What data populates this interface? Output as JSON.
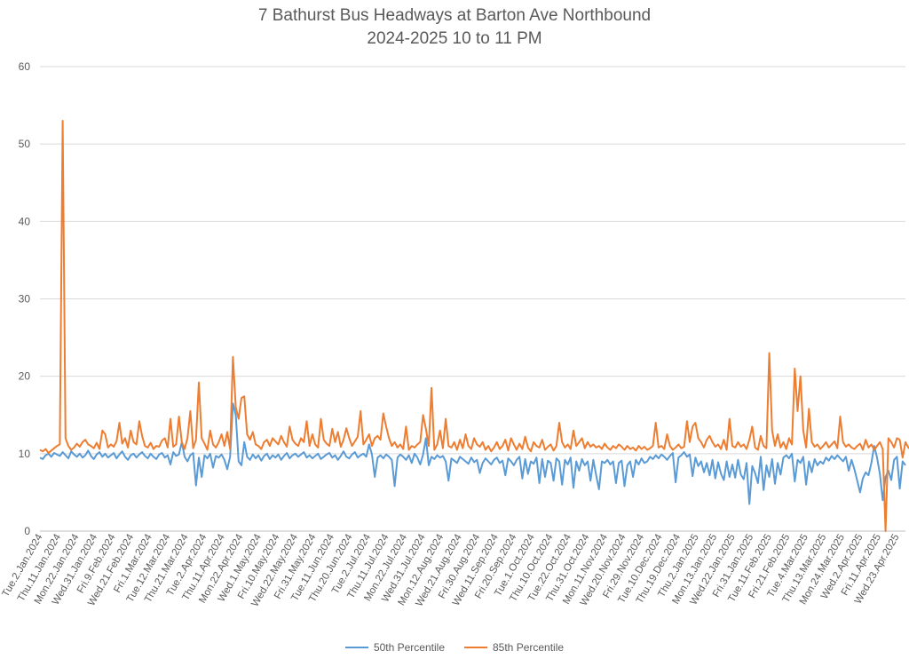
{
  "chart_data": {
    "type": "line",
    "title": "7 Bathurst Bus Headways at Barton Ave Northbound",
    "subtitle": "2024-2025 10 to 11 PM",
    "xlabel": "",
    "ylabel": "",
    "ylim": [
      0,
      60
    ],
    "yticks": [
      0,
      10,
      20,
      30,
      40,
      50,
      60
    ],
    "grid": true,
    "legend_position": "bottom",
    "x_tick_labels": [
      "Tue.2.Jan.2024",
      "Thu.11.Jan.2024",
      "Mon.22.Jan.2024",
      "Wed.31.Jan.2024",
      "Fri.9.Feb.2024",
      "Wed.21.Feb.2024",
      "Fri.1.Mar.2024",
      "Tue.12.Mar.2024",
      "Thu.21.Mar.2024",
      "Tue.2.Apr.2024",
      "Thu.11.Apr.2024",
      "Mon.22.Apr.2024",
      "Wed.1.May.2024",
      "Fri.10.May.2024",
      "Wed.22.May.2024",
      "Fri.31.May.2024",
      "Tue.11.Jun.2024",
      "Thu.20.Jun.2024",
      "Tue.2.Jul.2024",
      "Thu.11.Jul.2024",
      "Mon.22.Jul.2024",
      "Wed.31.Jul.2024",
      "Mon.12.Aug.2024",
      "Wed.21.Aug.2024",
      "Fri.30.Aug.2024",
      "Wed.11.Sep.2024",
      "Fri.20.Sep.2024",
      "Tue.1.Oct.2024",
      "Thu.10.Oct.2024",
      "Tue.22.Oct.2024",
      "Thu.31.Oct.2024",
      "Mon.11.Nov.2024",
      "Wed.20.Nov.2024",
      "Fri.29.Nov.2024",
      "Tue.10.Dec.2024",
      "Thu.19.Dec.2024",
      "Thu.2.Jan.2025",
      "Mon.13.Jan.2025",
      "Wed.22.Jan.2025",
      "Fri.31.Jan.2025",
      "Tue.11.Feb.2025",
      "Fri.21.Feb.2025",
      "Tue.4.Mar.2025",
      "Thu.13.Mar.2025",
      "Mon.24.Mar.2025",
      "Wed.2.Apr.2025",
      "Fri.11.Apr.2025",
      "Wed.23.Apr.2025"
    ],
    "series": [
      {
        "name": "50th Percentile",
        "color": "#5B9BD5",
        "values": [
          9.5,
          9.3,
          9.8,
          10.0,
          9.6,
          10.1,
          9.9,
          9.7,
          10.2,
          9.8,
          9.4,
          10.3,
          9.9,
          9.6,
          10.0,
          9.5,
          9.8,
          10.4,
          9.7,
          9.3,
          9.9,
          10.2,
          9.6,
          10.0,
          9.5,
          9.8,
          10.1,
          9.4,
          9.9,
          10.3,
          9.6,
          9.2,
          9.8,
          10.0,
          9.5,
          9.9,
          10.2,
          9.7,
          9.4,
          10.0,
          9.6,
          9.3,
          9.9,
          10.1,
          9.5,
          9.8,
          8.6,
          10.2,
          9.7,
          9.9,
          11.5,
          9.6,
          9.0,
          9.8,
          10.1,
          5.9,
          9.5,
          7.0,
          9.8,
          9.4,
          10.0,
          8.2,
          9.7,
          9.5,
          9.9,
          9.2,
          8.0,
          9.6,
          16.5,
          15.0,
          9.0,
          8.5,
          11.5,
          9.6,
          9.2,
          9.9,
          9.4,
          9.8,
          9.1,
          9.7,
          10.0,
          9.3,
          9.8,
          9.5,
          9.9,
          9.2,
          9.7,
          10.1,
          9.4,
          9.8,
          10.0,
          9.6,
          9.9,
          10.2,
          9.5,
          9.8,
          9.4,
          9.7,
          10.0,
          9.3,
          9.6,
          9.9,
          10.1,
          9.5,
          9.8,
          9.2,
          9.7,
          10.3,
          9.6,
          9.4,
          9.9,
          10.2,
          9.5,
          9.8,
          10.0,
          9.6,
          11.2,
          9.9,
          7.0,
          9.5,
          9.8,
          9.4,
          9.9,
          9.6,
          9.2,
          5.8,
          9.5,
          9.9,
          9.6,
          9.2,
          9.8,
          8.8,
          10.0,
          9.5,
          8.6,
          9.9,
          12.0,
          8.5,
          9.6,
          9.3,
          9.8,
          9.5,
          9.7,
          9.0,
          6.5,
          9.4,
          9.1,
          8.8,
          9.6,
          9.3,
          9.0,
          8.7,
          9.5,
          8.9,
          9.2,
          7.5,
          8.8,
          9.4,
          9.0,
          8.6,
          9.2,
          9.5,
          8.8,
          9.1,
          7.2,
          9.4,
          9.0,
          8.5,
          9.2,
          9.6,
          6.8,
          9.3,
          7.4,
          9.0,
          8.7,
          9.5,
          6.2,
          9.3,
          7.0,
          9.1,
          8.8,
          6.5,
          9.4,
          9.0,
          6.0,
          9.2,
          8.6,
          9.5,
          5.6,
          9.0,
          7.8,
          9.3,
          8.5,
          9.0,
          6.5,
          9.2,
          7.2,
          5.4,
          9.0,
          8.8,
          9.2,
          8.6,
          9.0,
          6.2,
          8.8,
          9.1,
          5.8,
          8.5,
          9.0,
          7.0,
          9.2,
          8.6,
          9.4,
          8.8,
          9.0,
          9.6,
          9.3,
          9.8,
          9.4,
          9.9,
          9.6,
          9.2,
          9.7,
          10.1,
          6.3,
          9.5,
          9.8,
          10.2,
          9.6,
          9.9,
          7.1,
          9.5,
          8.4,
          9.0,
          7.6,
          8.8,
          7.2,
          9.2,
          6.8,
          8.9,
          7.4,
          6.6,
          9.0,
          7.0,
          8.6,
          6.9,
          9.2,
          7.3,
          6.7,
          8.8,
          3.5,
          8.4,
          7.5,
          6.2,
          9.6,
          5.3,
          8.5,
          7.0,
          9.3,
          6.1,
          8.8,
          7.3,
          9.5,
          9.8,
          9.4,
          10.0,
          6.4,
          9.2,
          8.8,
          9.6,
          6.0,
          9.0,
          7.6,
          9.3,
          8.5,
          9.0,
          8.7,
          9.5,
          9.1,
          9.7,
          9.3,
          9.8,
          9.4,
          9.0,
          9.6,
          7.8,
          9.2,
          8.0,
          6.5,
          5.0,
          6.8,
          7.6,
          7.2,
          8.8,
          11.0,
          9.5,
          7.4,
          4.0,
          7.0,
          7.8,
          6.6,
          9.2,
          9.6,
          5.5,
          9.0,
          8.5
        ]
      },
      {
        "name": "85th Percentile",
        "color": "#ED7D31",
        "values": [
          10.5,
          10.3,
          10.6,
          10.1,
          10.4,
          10.7,
          11.0,
          11.2,
          53.0,
          12.0,
          11.0,
          10.5,
          10.8,
          11.3,
          10.9,
          11.5,
          11.8,
          11.2,
          11.0,
          10.7,
          11.4,
          10.6,
          13.0,
          12.5,
          10.8,
          11.2,
          10.9,
          11.6,
          14.0,
          11.3,
          12.0,
          10.8,
          13.0,
          11.5,
          11.2,
          14.2,
          12.3,
          11.0,
          10.8,
          11.4,
          10.6,
          11.0,
          10.9,
          11.7,
          12.0,
          10.8,
          14.5,
          10.9,
          11.2,
          14.8,
          11.5,
          10.6,
          12.0,
          15.5,
          10.7,
          11.8,
          19.2,
          12.0,
          11.3,
          10.5,
          13.0,
          11.2,
          10.8,
          11.5,
          12.5,
          11.0,
          12.8,
          10.6,
          22.5,
          16.0,
          14.5,
          17.2,
          17.4,
          12.5,
          11.8,
          12.8,
          11.2,
          11.0,
          10.6,
          11.5,
          11.8,
          11.0,
          12.0,
          11.6,
          11.2,
          12.3,
          11.5,
          10.9,
          13.5,
          11.8,
          11.3,
          11.0,
          12.0,
          11.5,
          14.2,
          11.0,
          12.5,
          11.2,
          10.8,
          14.5,
          11.8,
          11.3,
          11.0,
          13.2,
          11.5,
          12.8,
          10.9,
          11.8,
          13.3,
          12.0,
          11.0,
          11.6,
          12.2,
          15.5,
          11.2,
          11.8,
          12.5,
          11.0,
          12.0,
          12.3,
          11.8,
          15.2,
          13.5,
          12.0,
          11.0,
          11.5,
          10.8,
          11.2,
          10.6,
          13.5,
          10.5,
          11.0,
          10.8,
          11.2,
          11.5,
          15.0,
          13.2,
          11.0,
          18.5,
          10.5,
          11.2,
          13.0,
          10.7,
          14.5,
          11.0,
          10.8,
          11.5,
          10.5,
          11.8,
          10.7,
          12.5,
          11.0,
          10.6,
          12.0,
          11.2,
          10.9,
          11.5,
          10.5,
          11.0,
          10.3,
          10.8,
          11.5,
          10.6,
          11.0,
          11.8,
          10.4,
          12.0,
          11.2,
          10.5,
          11.3,
          10.6,
          12.2,
          10.8,
          10.3,
          11.5,
          11.0,
          10.8,
          11.8,
          10.5,
          10.9,
          11.2,
          10.4,
          11.0,
          14.0,
          11.5,
          10.8,
          11.2,
          10.6,
          13.0,
          11.0,
          11.5,
          12.0,
          10.7,
          11.5,
          10.9,
          11.2,
          10.8,
          11.0,
          10.6,
          11.3,
          10.8,
          10.5,
          11.0,
          10.7,
          11.2,
          10.9,
          10.5,
          11.0,
          10.6,
          10.8,
          10.4,
          11.0,
          10.6,
          10.9,
          10.5,
          10.7,
          11.0,
          14.0,
          10.8,
          11.0,
          10.6,
          12.5,
          11.0,
          10.5,
          10.8,
          11.2,
          10.7,
          10.9,
          14.2,
          11.5,
          13.5,
          14.0,
          12.0,
          11.5,
          10.8,
          11.8,
          12.3,
          11.5,
          10.9,
          11.2,
          10.6,
          11.8,
          10.5,
          14.5,
          11.0,
          10.8,
          11.5,
          10.9,
          11.2,
          10.6,
          11.8,
          13.5,
          10.8,
          10.5,
          12.3,
          11.0,
          10.7,
          23.0,
          13.0,
          11.0,
          12.5,
          10.8,
          11.5,
          10.6,
          12.0,
          11.2,
          21.0,
          15.5,
          20.0,
          13.0,
          10.8,
          15.8,
          11.5,
          10.9,
          11.2,
          10.6,
          11.0,
          11.5,
          10.8,
          11.2,
          11.6,
          10.7,
          14.8,
          11.5,
          10.9,
          11.2,
          10.8,
          10.6,
          11.0,
          11.3,
          10.5,
          11.8,
          10.8,
          11.2,
          10.5,
          11.0,
          11.5,
          10.6,
          0.0,
          12.0,
          11.5,
          10.8,
          12.0,
          11.8,
          9.5,
          11.5,
          10.8,
          10.5,
          11.2,
          10.8,
          11.0,
          10.6
        ]
      }
    ]
  }
}
